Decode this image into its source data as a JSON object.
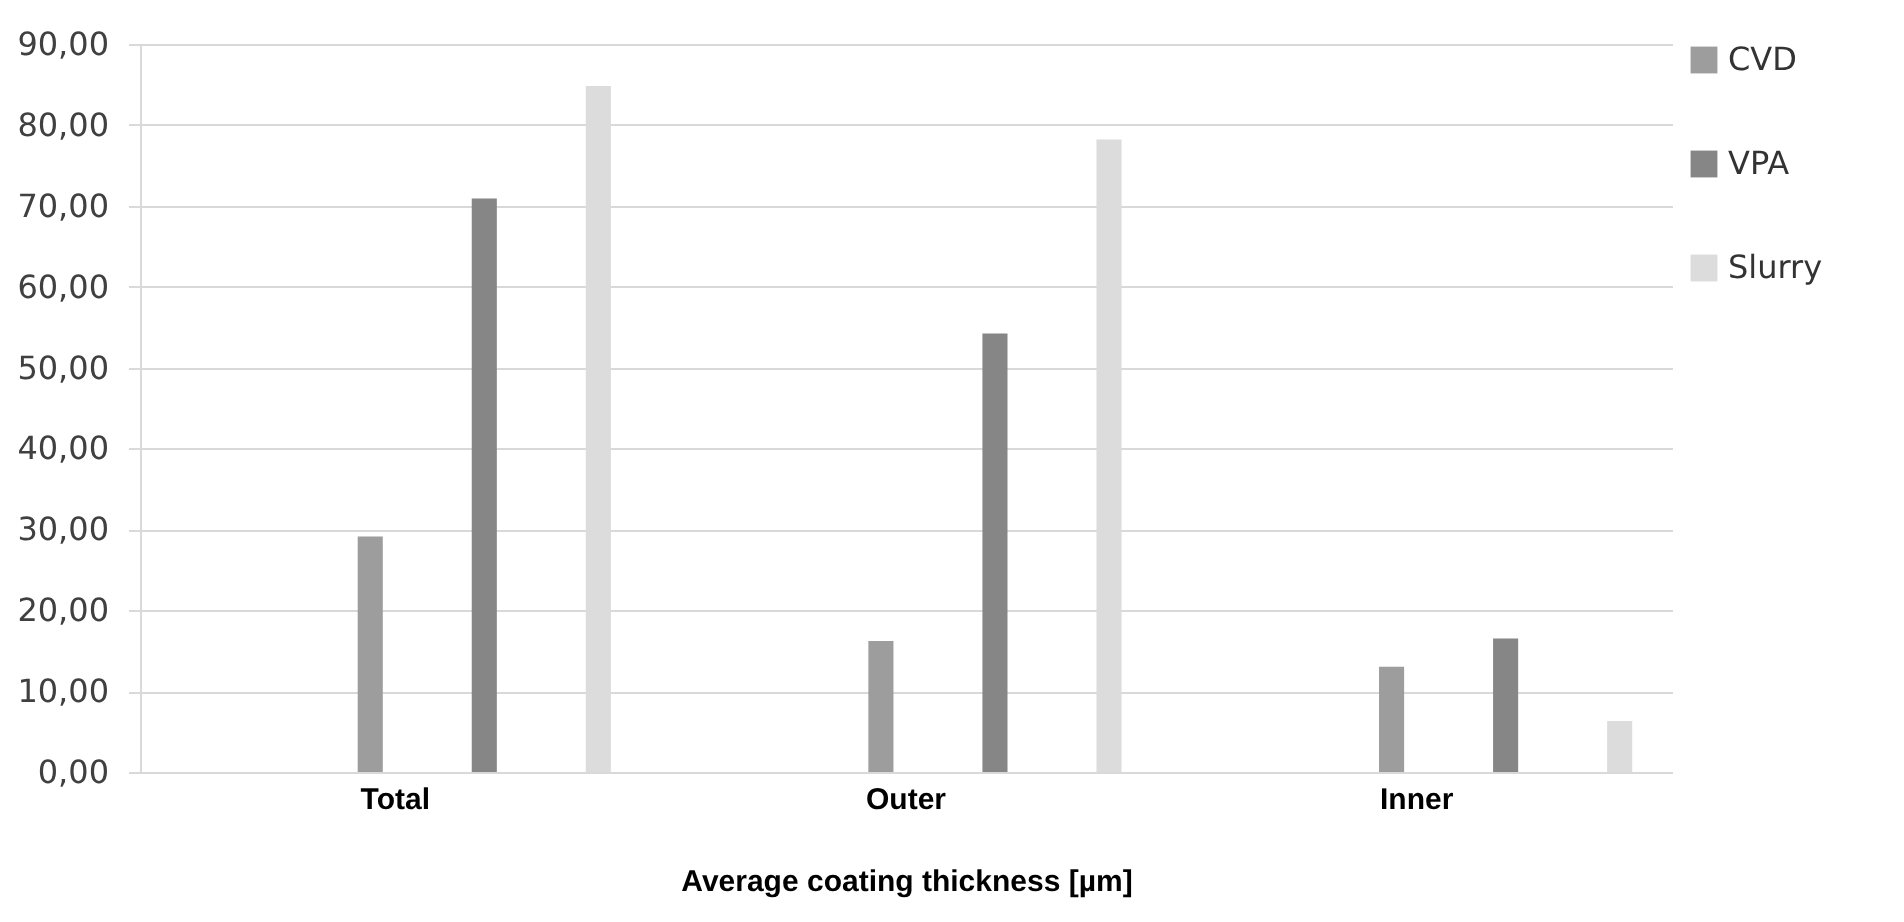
{
  "chart_data": {
    "type": "bar",
    "xlabel": "Average coating thickness [µm]",
    "categories": [
      "Total",
      "Outer",
      "Inner"
    ],
    "series": [
      {
        "name": "CVD",
        "color": "#9d9d9d",
        "values": [
          29.1,
          16.2,
          13.0
        ]
      },
      {
        "name": "VPA",
        "color": "#868686",
        "values": [
          70.9,
          54.2,
          16.5
        ]
      },
      {
        "name": "Slurry",
        "color": "#dcdcdc",
        "values": [
          84.8,
          78.2,
          6.3
        ]
      }
    ],
    "ylim": [
      0,
      90
    ],
    "yticks": [
      {
        "value": 0,
        "label": "0,00"
      },
      {
        "value": 10,
        "label": "10,00"
      },
      {
        "value": 20,
        "label": "20,00"
      },
      {
        "value": 30,
        "label": "30,00"
      },
      {
        "value": 40,
        "label": "40,00"
      },
      {
        "value": 50,
        "label": "50,00"
      },
      {
        "value": 60,
        "label": "60,00"
      },
      {
        "value": 70,
        "label": "70,00"
      },
      {
        "value": 80,
        "label": "80,00"
      },
      {
        "value": 90,
        "label": "90,00"
      }
    ],
    "grid": "y",
    "legend": "right"
  }
}
